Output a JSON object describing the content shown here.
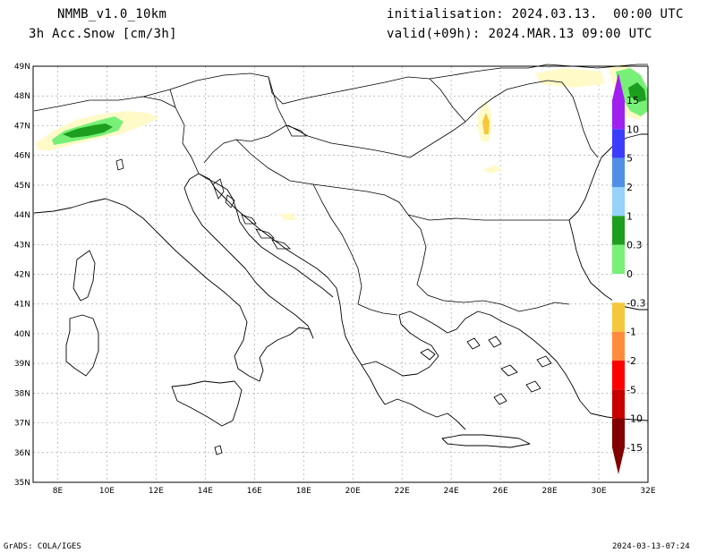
{
  "header": {
    "model": "NMMB_v1.0_10km",
    "field": "3h Acc.Snow [cm/3h]",
    "init": "initialisation: 2024.03.13.  00:00 UTC",
    "valid": "valid(+09h): 2024.MAR.13 09:00 UTC"
  },
  "footer": {
    "software": "GrADS: COLA/IGES",
    "timestamp": "2024-03-13-07:24"
  },
  "map": {
    "lon_range": [
      7,
      32
    ],
    "lat_range": [
      35,
      49
    ],
    "lon_ticks": [
      "8E",
      "10E",
      "12E",
      "14E",
      "16E",
      "18E",
      "20E",
      "22E",
      "24E",
      "26E",
      "28E",
      "30E",
      "32E"
    ],
    "lat_ticks": [
      "35N",
      "36N",
      "37N",
      "38N",
      "39N",
      "40N",
      "41N",
      "42N",
      "43N",
      "44N",
      "45N",
      "46N",
      "47N",
      "48N",
      "49N"
    ]
  },
  "colorbar": {
    "labels": [
      "15",
      "10",
      "5",
      "2",
      "1",
      "0.3",
      "0",
      "-0.3",
      "-1",
      "-2",
      "-5",
      "-10",
      "-15"
    ],
    "colors": {
      "positive": [
        "#a020f0",
        "#3c3cff",
        "#4f8fe6",
        "#96d2fa",
        "#1e9e1e",
        "#78f078"
      ],
      "negative": [
        "#fffac8",
        "#f5c83c",
        "#ff8c3c",
        "#ff0000",
        "#c80000",
        "#820000"
      ]
    }
  }
}
